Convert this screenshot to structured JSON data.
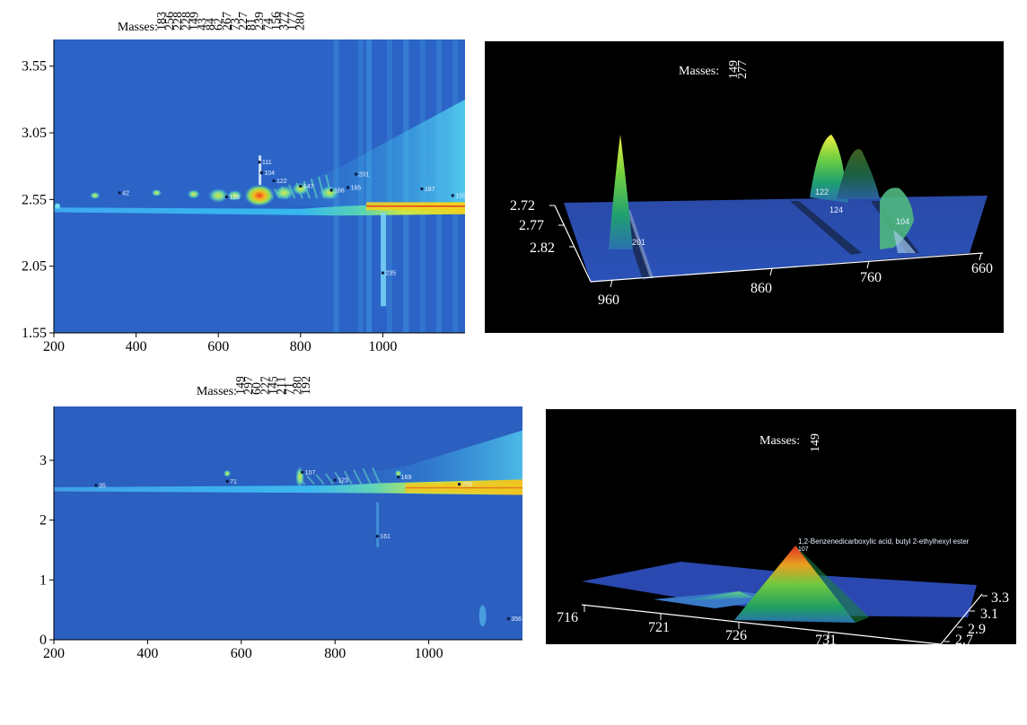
{
  "chart_data": [
    {
      "type": "heatmap",
      "masses_label": "Masses:",
      "masses": [
        "183",
        "256",
        "228",
        "228",
        "149",
        "43",
        "84",
        "62",
        "267",
        "73",
        "227",
        "81",
        "239",
        "74",
        "156",
        "377",
        "177",
        "280"
      ],
      "xlim": [
        200,
        1200
      ],
      "ylim": [
        1.55,
        3.75
      ],
      "x_ticks": [
        200,
        400,
        600,
        800,
        1000
      ],
      "y_ticks": [
        "1.55",
        "2.05",
        "2.55",
        "3.05",
        "3.55"
      ],
      "peak_labels": [
        {
          "text": "42",
          "x": 360,
          "y": 2.6
        },
        {
          "text": "111",
          "x": 700,
          "y": 2.83
        },
        {
          "text": "104",
          "x": 705,
          "y": 2.75
        },
        {
          "text": "122",
          "x": 735,
          "y": 2.69
        },
        {
          "text": "147",
          "x": 800,
          "y": 2.65
        },
        {
          "text": "166",
          "x": 875,
          "y": 2.62
        },
        {
          "text": "165",
          "x": 915,
          "y": 2.64
        },
        {
          "text": "201",
          "x": 935,
          "y": 2.74
        },
        {
          "text": "187",
          "x": 1095,
          "y": 2.63
        },
        {
          "text": "235",
          "x": 1000,
          "y": 2.0
        },
        {
          "text": "126",
          "x": 620,
          "y": 2.57
        },
        {
          "text": "155",
          "x": 1170,
          "y": 2.58
        }
      ]
    },
    {
      "type": "area",
      "masses_label": "Masses:",
      "masses": [
        "149",
        "277"
      ],
      "x_ticks": [
        "960",
        "860",
        "760",
        "660"
      ],
      "y_ticks": [
        "2.72",
        "2.77",
        "2.82"
      ],
      "peak_labels": [
        "122",
        "124",
        "104",
        "201"
      ]
    },
    {
      "type": "heatmap",
      "masses_label": "Masses:",
      "masses": [
        "149",
        "297",
        "60",
        "227",
        "145",
        "211",
        "71",
        "280",
        "192"
      ],
      "xlim": [
        200,
        1200
      ],
      "ylim": [
        0,
        3.9
      ],
      "x_ticks": [
        200,
        400,
        600,
        800,
        1000
      ],
      "y_ticks": [
        "0",
        "1",
        "2",
        "3"
      ],
      "peak_labels": [
        {
          "text": "35",
          "x": 290,
          "y": 2.58
        },
        {
          "text": "71",
          "x": 570,
          "y": 2.65
        },
        {
          "text": "107",
          "x": 730,
          "y": 2.8
        },
        {
          "text": "123",
          "x": 800,
          "y": 2.67
        },
        {
          "text": "169",
          "x": 935,
          "y": 2.72
        },
        {
          "text": "161",
          "x": 890,
          "y": 1.73
        },
        {
          "text": "259",
          "x": 1065,
          "y": 2.6
        },
        {
          "text": "356",
          "x": 1170,
          "y": 0.35
        }
      ]
    },
    {
      "type": "area",
      "masses_label": "Masses:",
      "masses": [
        "149"
      ],
      "x_ticks": [
        "716",
        "721",
        "726",
        "731"
      ],
      "y_ticks": [
        "3.3",
        "3.1",
        "2.9",
        "2.7"
      ],
      "peak_name": "1,2-Benzenedicarboxylic acid, butyl 2-ethylhexyl ester",
      "peak_id": "107"
    }
  ]
}
